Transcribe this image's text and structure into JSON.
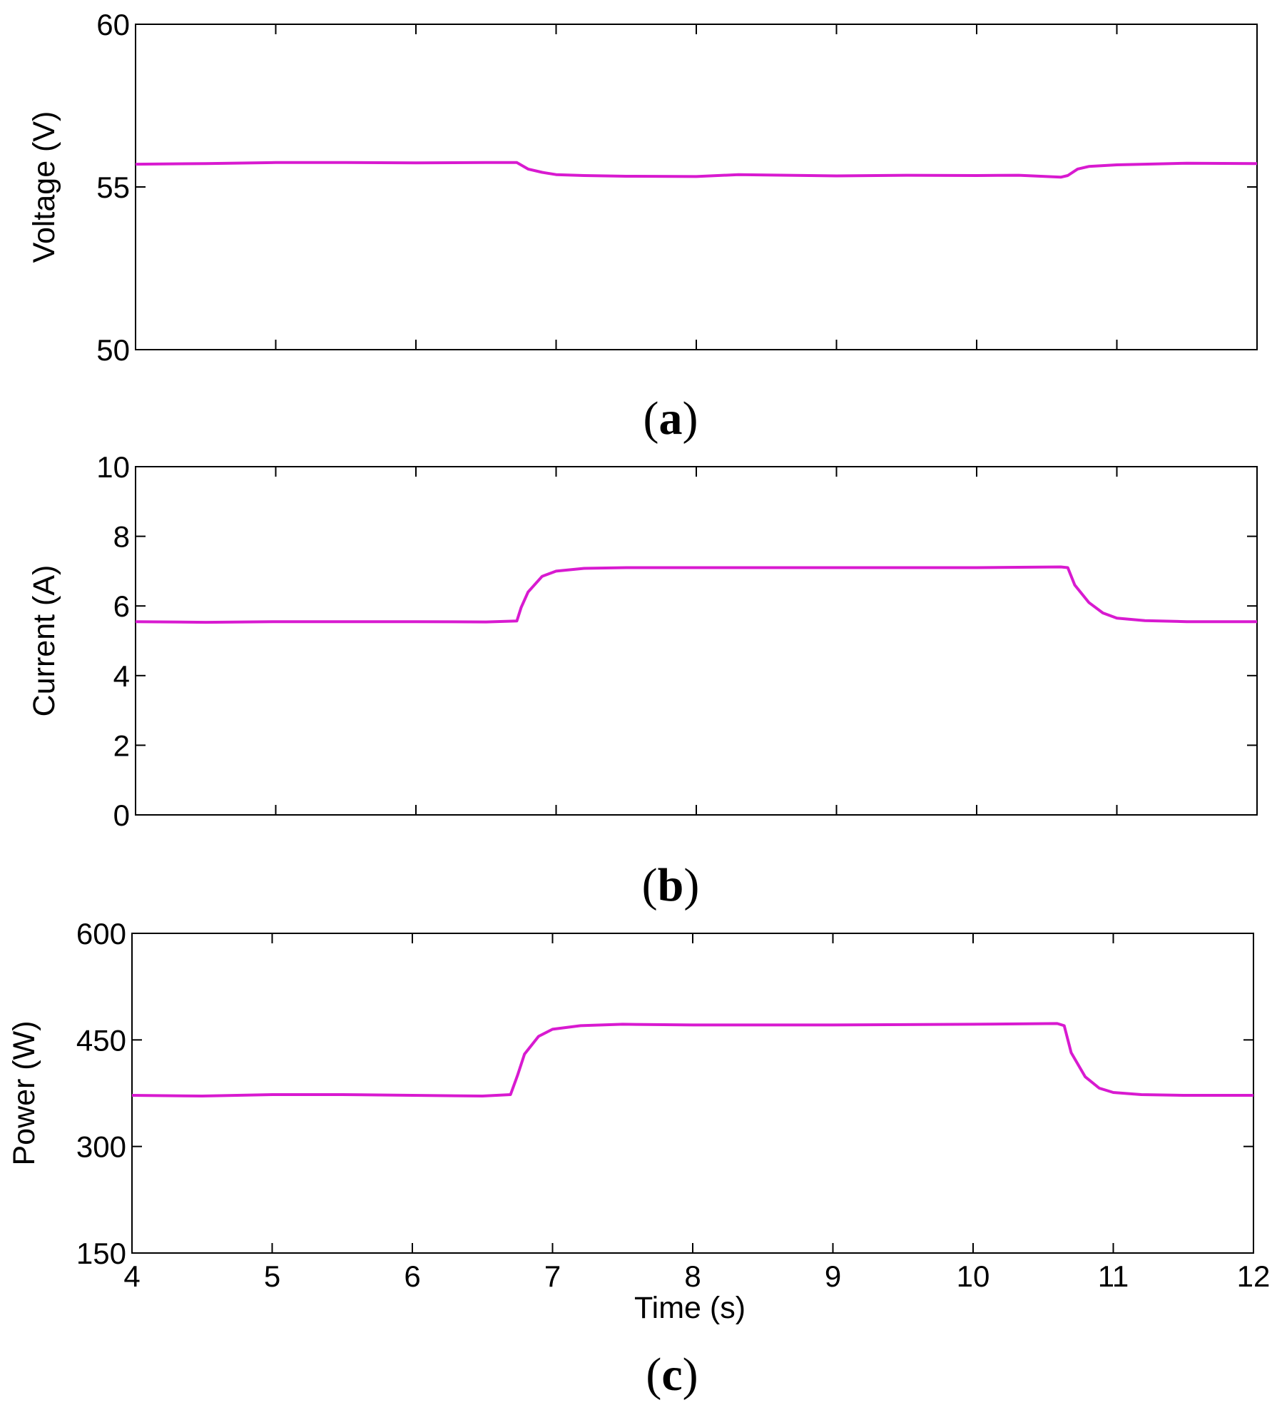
{
  "chart_data": [
    {
      "type": "line",
      "panel": "a",
      "caption_label": "a",
      "ylabel": "Voltage (V)",
      "xlabel": "",
      "xlim": [
        4,
        12
      ],
      "ylim": [
        50,
        60
      ],
      "yticks": [
        50,
        55,
        60
      ],
      "ytick_labels": [
        "50",
        "55",
        "60"
      ],
      "xticks": [
        4,
        5,
        6,
        7,
        8,
        9,
        10,
        11,
        12
      ],
      "show_xtick_labels": false,
      "line_color": "#d81ad0",
      "series": [
        {
          "name": "Voltage",
          "x": [
            4.0,
            4.5,
            5.0,
            5.5,
            6.0,
            6.5,
            6.72,
            6.8,
            6.9,
            7.0,
            7.2,
            7.5,
            8.0,
            8.3,
            9.0,
            9.5,
            10.0,
            10.3,
            10.6,
            10.65,
            10.72,
            10.8,
            11.0,
            11.5,
            12.0
          ],
          "values": [
            55.7,
            55.72,
            55.75,
            55.75,
            55.74,
            55.75,
            55.75,
            55.55,
            55.45,
            55.38,
            55.35,
            55.33,
            55.32,
            55.38,
            55.34,
            55.36,
            55.35,
            55.36,
            55.3,
            55.35,
            55.55,
            55.63,
            55.68,
            55.73,
            55.72
          ]
        }
      ]
    },
    {
      "type": "line",
      "panel": "b",
      "caption_label": "b",
      "ylabel": "Current (A)",
      "xlabel": "",
      "xlim": [
        4,
        12
      ],
      "ylim": [
        0,
        10
      ],
      "yticks": [
        0,
        2,
        4,
        6,
        8,
        10
      ],
      "ytick_labels": [
        "0",
        "2",
        "4",
        "6",
        "8",
        "10"
      ],
      "xticks": [
        4,
        5,
        6,
        7,
        8,
        9,
        10,
        11,
        12
      ],
      "show_xtick_labels": false,
      "line_color": "#d81ad0",
      "series": [
        {
          "name": "Current",
          "x": [
            4.0,
            4.5,
            5.0,
            5.5,
            6.0,
            6.5,
            6.72,
            6.75,
            6.8,
            6.9,
            7.0,
            7.2,
            7.5,
            8.0,
            9.0,
            10.0,
            10.6,
            10.65,
            10.7,
            10.8,
            10.9,
            11.0,
            11.2,
            11.5,
            12.0
          ],
          "values": [
            5.55,
            5.53,
            5.55,
            5.55,
            5.55,
            5.54,
            5.57,
            5.95,
            6.4,
            6.85,
            7.0,
            7.08,
            7.1,
            7.1,
            7.1,
            7.1,
            7.12,
            7.1,
            6.6,
            6.1,
            5.8,
            5.65,
            5.58,
            5.55,
            5.55
          ]
        }
      ]
    },
    {
      "type": "line",
      "panel": "c",
      "caption_label": "c",
      "ylabel": "Power (W)",
      "xlabel": "Time (s)",
      "xlim": [
        4,
        12
      ],
      "ylim": [
        150,
        600
      ],
      "yticks": [
        150,
        300,
        450,
        600
      ],
      "ytick_labels": [
        "150",
        "300",
        "450",
        "600"
      ],
      "xticks": [
        4,
        5,
        6,
        7,
        8,
        9,
        10,
        11,
        12
      ],
      "xtick_labels": [
        "4",
        "5",
        "6",
        "7",
        "8",
        "9",
        "10",
        "11",
        "12"
      ],
      "show_xtick_labels": true,
      "line_color": "#d81ad0",
      "series": [
        {
          "name": "Power",
          "x": [
            4.0,
            4.5,
            5.0,
            5.5,
            6.0,
            6.5,
            6.7,
            6.75,
            6.8,
            6.9,
            7.0,
            7.2,
            7.5,
            8.0,
            9.0,
            10.0,
            10.6,
            10.65,
            10.7,
            10.8,
            10.9,
            11.0,
            11.2,
            11.5,
            12.0
          ],
          "values": [
            372,
            371,
            373,
            373,
            372,
            371,
            373,
            400,
            430,
            455,
            465,
            470,
            472,
            471,
            471,
            472,
            473,
            470,
            432,
            398,
            382,
            376,
            373,
            372,
            372
          ]
        }
      ]
    }
  ]
}
